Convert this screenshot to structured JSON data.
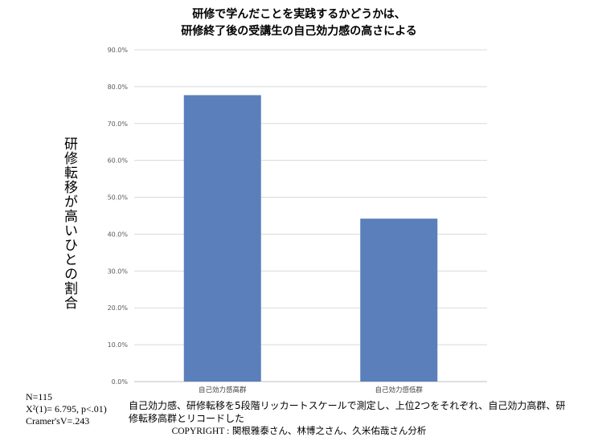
{
  "chart_data": {
    "type": "bar",
    "title": [
      "研修で学んだことを実践するかどうかは、",
      "研修終了後の受講生の自己効力感の高さによる"
    ],
    "ylabel": "研修転移が高いひとの割合",
    "xlabel": "",
    "categories": [
      "自己効力感高群",
      "自己効力感低群"
    ],
    "values": [
      77.7,
      44.2
    ],
    "ylim": [
      0,
      90
    ],
    "yticks": [
      "0.0%",
      "10.0%",
      "20.0%",
      "30.0%",
      "40.0%",
      "50.0%",
      "60.0%",
      "70.0%",
      "80.0%",
      "90.0%"
    ],
    "grid": true,
    "legend": "none",
    "bar_color": "#5a7fbb"
  },
  "stats": {
    "n": "N=115",
    "chi2": "X²(1)= 6.795, p<.01)",
    "cramer": "Cramer'sV=.243"
  },
  "note": "自己効力感、研修転移を5段階リッカートスケールで測定し、上位2つをそれぞれ、自己効力高群、研修転移高群とリコードした",
  "copyright": {
    "label": "COPYRIGHT :",
    "credit": " 関根雅泰さん、林博之さん、久米佑哉さん分析"
  }
}
